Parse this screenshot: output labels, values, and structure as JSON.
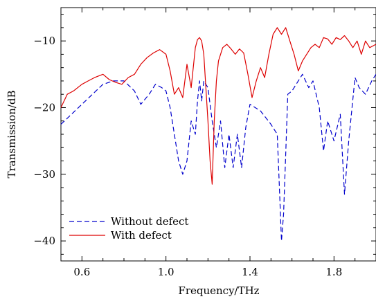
{
  "chart_data": {
    "type": "line",
    "xlabel": "Frequency/THz",
    "ylabel": "Transmission/dB",
    "xlim": [
      0.5,
      2.0
    ],
    "ylim": [
      -43,
      -5
    ],
    "xticks": [
      0.6,
      1.0,
      1.4,
      1.8
    ],
    "xtick_labels": [
      "0.6",
      "1.0",
      "1.4",
      "1.8"
    ],
    "yticks": [
      -10,
      -20,
      -30,
      -40
    ],
    "ytick_labels": [
      "−10",
      "−20",
      "−30",
      "−40"
    ],
    "legend_position": "bottom-left",
    "grid": false,
    "series": [
      {
        "name": "Without defect",
        "color": "#0000cc",
        "style": "dashed",
        "x": [
          0.5,
          0.55,
          0.6,
          0.65,
          0.7,
          0.75,
          0.8,
          0.85,
          0.88,
          0.92,
          0.95,
          0.98,
          1.0,
          1.02,
          1.04,
          1.06,
          1.08,
          1.1,
          1.12,
          1.14,
          1.15,
          1.16,
          1.17,
          1.18,
          1.2,
          1.22,
          1.24,
          1.26,
          1.28,
          1.3,
          1.32,
          1.34,
          1.36,
          1.38,
          1.4,
          1.45,
          1.5,
          1.53,
          1.54,
          1.55,
          1.56,
          1.57,
          1.58,
          1.6,
          1.65,
          1.68,
          1.7,
          1.73,
          1.75,
          1.77,
          1.8,
          1.83,
          1.85,
          1.87,
          1.9,
          1.92,
          1.95,
          1.98,
          2.0
        ],
        "y": [
          -22.5,
          -21,
          -19.5,
          -18,
          -16.5,
          -16,
          -16,
          -17.5,
          -19.5,
          -18,
          -16.5,
          -17,
          -17.5,
          -20,
          -24,
          -28,
          -30,
          -28,
          -22,
          -24,
          -19,
          -16,
          -19,
          -16,
          -17,
          -22,
          -26,
          -22,
          -29,
          -24,
          -29,
          -24,
          -29,
          -23,
          -19.5,
          -20.5,
          -22.5,
          -24,
          -32,
          -40,
          -36,
          -27,
          -18,
          -17.5,
          -15,
          -17,
          -16,
          -20,
          -26.5,
          -22,
          -25,
          -21,
          -33,
          -25,
          -15.5,
          -17,
          -18,
          -16,
          -15
        ]
      },
      {
        "name": "With defect",
        "color": "#dd0000",
        "style": "solid",
        "x": [
          0.5,
          0.53,
          0.56,
          0.6,
          0.63,
          0.66,
          0.7,
          0.73,
          0.76,
          0.79,
          0.82,
          0.85,
          0.88,
          0.91,
          0.94,
          0.97,
          1.0,
          1.02,
          1.04,
          1.06,
          1.08,
          1.1,
          1.12,
          1.14,
          1.15,
          1.16,
          1.17,
          1.18,
          1.19,
          1.2,
          1.21,
          1.22,
          1.23,
          1.24,
          1.25,
          1.27,
          1.29,
          1.31,
          1.33,
          1.35,
          1.37,
          1.39,
          1.41,
          1.43,
          1.45,
          1.47,
          1.49,
          1.51,
          1.53,
          1.55,
          1.57,
          1.59,
          1.61,
          1.63,
          1.65,
          1.67,
          1.69,
          1.71,
          1.73,
          1.75,
          1.77,
          1.79,
          1.81,
          1.83,
          1.85,
          1.87,
          1.89,
          1.91,
          1.93,
          1.95,
          1.97,
          2.0
        ],
        "y": [
          -20,
          -18,
          -17.5,
          -16.5,
          -16,
          -15.5,
          -15,
          -15.8,
          -16.2,
          -16.5,
          -15.5,
          -15,
          -13.5,
          -12.5,
          -11.8,
          -11.3,
          -12,
          -14.5,
          -18,
          -17,
          -18.5,
          -13.5,
          -17,
          -11,
          -9.8,
          -9.5,
          -10,
          -12,
          -17,
          -22,
          -28,
          -31.5,
          -22,
          -16,
          -13,
          -11,
          -10.5,
          -11.2,
          -12,
          -11.2,
          -11.8,
          -15,
          -18.5,
          -16,
          -14,
          -15.5,
          -12,
          -9,
          -8,
          -9,
          -8,
          -10,
          -12,
          -14.5,
          -13,
          -12,
          -11,
          -10.5,
          -11,
          -9.5,
          -9.7,
          -10.5,
          -9.5,
          -9.8,
          -9.2,
          -10,
          -11,
          -10,
          -12,
          -10,
          -11,
          -10.5
        ]
      }
    ]
  }
}
